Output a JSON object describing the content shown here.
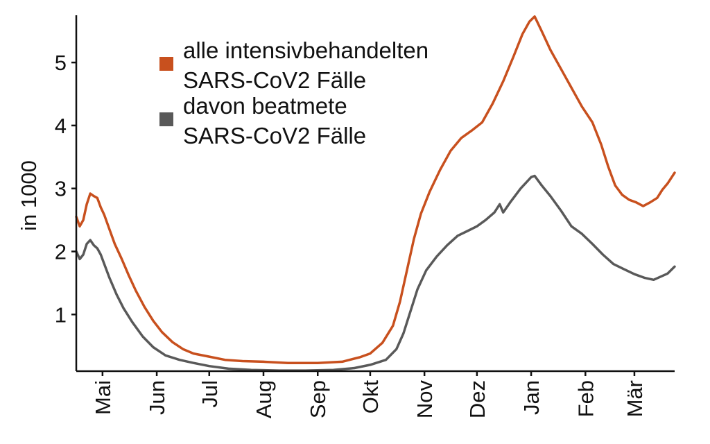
{
  "chart_data": {
    "type": "line",
    "title": "",
    "xlabel": "",
    "ylabel": "in 1000",
    "ylim": [
      0.1,
      5.75
    ],
    "y_ticks": [
      1,
      2,
      3,
      4,
      5
    ],
    "x_range": [
      "2020-04-16",
      "2021-03-24"
    ],
    "x_ticks": [
      {
        "date": "2020-05-01",
        "label": "Mai"
      },
      {
        "date": "2020-06-01",
        "label": "Jun"
      },
      {
        "date": "2020-07-01",
        "label": "Jul"
      },
      {
        "date": "2020-08-01",
        "label": "Aug"
      },
      {
        "date": "2020-09-01",
        "label": "Sep"
      },
      {
        "date": "2020-10-01",
        "label": "Okt"
      },
      {
        "date": "2020-11-01",
        "label": "Nov"
      },
      {
        "date": "2020-12-01",
        "label": "Dez"
      },
      {
        "date": "2021-01-01",
        "label": "Jan"
      },
      {
        "date": "2021-02-01",
        "label": "Feb"
      },
      {
        "date": "2021-03-01",
        "label": "Mär"
      }
    ],
    "grid": false,
    "legend_position": "top-left",
    "series": [
      {
        "name": "alle intensivbehandelten SARS-CoV2 Fälle",
        "color": "#C8501E",
        "points": [
          [
            "2020-04-16",
            2.55
          ],
          [
            "2020-04-18",
            2.4
          ],
          [
            "2020-04-20",
            2.5
          ],
          [
            "2020-04-22",
            2.75
          ],
          [
            "2020-04-24",
            2.92
          ],
          [
            "2020-04-26",
            2.88
          ],
          [
            "2020-04-28",
            2.85
          ],
          [
            "2020-04-30",
            2.7
          ],
          [
            "2020-05-02",
            2.58
          ],
          [
            "2020-05-05",
            2.35
          ],
          [
            "2020-05-08",
            2.12
          ],
          [
            "2020-05-12",
            1.88
          ],
          [
            "2020-05-16",
            1.62
          ],
          [
            "2020-05-20",
            1.38
          ],
          [
            "2020-05-25",
            1.12
          ],
          [
            "2020-05-30",
            0.9
          ],
          [
            "2020-06-04",
            0.72
          ],
          [
            "2020-06-10",
            0.56
          ],
          [
            "2020-06-16",
            0.45
          ],
          [
            "2020-06-22",
            0.38
          ],
          [
            "2020-07-01",
            0.33
          ],
          [
            "2020-07-10",
            0.28
          ],
          [
            "2020-07-20",
            0.26
          ],
          [
            "2020-08-01",
            0.25
          ],
          [
            "2020-08-15",
            0.23
          ],
          [
            "2020-09-01",
            0.23
          ],
          [
            "2020-09-15",
            0.25
          ],
          [
            "2020-09-25",
            0.32
          ],
          [
            "2020-10-01",
            0.38
          ],
          [
            "2020-10-08",
            0.55
          ],
          [
            "2020-10-14",
            0.82
          ],
          [
            "2020-10-18",
            1.2
          ],
          [
            "2020-10-22",
            1.7
          ],
          [
            "2020-10-26",
            2.2
          ],
          [
            "2020-10-30",
            2.6
          ],
          [
            "2020-11-04",
            2.95
          ],
          [
            "2020-11-10",
            3.3
          ],
          [
            "2020-11-16",
            3.6
          ],
          [
            "2020-11-22",
            3.8
          ],
          [
            "2020-11-28",
            3.92
          ],
          [
            "2020-12-04",
            4.05
          ],
          [
            "2020-12-10",
            4.35
          ],
          [
            "2020-12-16",
            4.7
          ],
          [
            "2020-12-22",
            5.1
          ],
          [
            "2020-12-27",
            5.45
          ],
          [
            "2020-12-31",
            5.65
          ],
          [
            "2021-01-03",
            5.73
          ],
          [
            "2021-01-07",
            5.5
          ],
          [
            "2021-01-12",
            5.2
          ],
          [
            "2021-01-18",
            4.9
          ],
          [
            "2021-01-24",
            4.6
          ],
          [
            "2021-01-30",
            4.3
          ],
          [
            "2021-02-05",
            4.05
          ],
          [
            "2021-02-10",
            3.7
          ],
          [
            "2021-02-14",
            3.35
          ],
          [
            "2021-02-18",
            3.05
          ],
          [
            "2021-02-22",
            2.9
          ],
          [
            "2021-02-26",
            2.82
          ],
          [
            "2021-03-02",
            2.78
          ],
          [
            "2021-03-06",
            2.72
          ],
          [
            "2021-03-10",
            2.78
          ],
          [
            "2021-03-14",
            2.85
          ],
          [
            "2021-03-17",
            2.98
          ],
          [
            "2021-03-20",
            3.08
          ],
          [
            "2021-03-24",
            3.25
          ]
        ]
      },
      {
        "name": "davon beatmete SARS-CoV2 Fälle",
        "color": "#595959",
        "points": [
          [
            "2020-04-16",
            2.0
          ],
          [
            "2020-04-18",
            1.88
          ],
          [
            "2020-04-20",
            1.95
          ],
          [
            "2020-04-22",
            2.12
          ],
          [
            "2020-04-24",
            2.18
          ],
          [
            "2020-04-26",
            2.1
          ],
          [
            "2020-04-28",
            2.05
          ],
          [
            "2020-04-30",
            1.95
          ],
          [
            "2020-05-02",
            1.8
          ],
          [
            "2020-05-05",
            1.58
          ],
          [
            "2020-05-09",
            1.32
          ],
          [
            "2020-05-13",
            1.1
          ],
          [
            "2020-05-18",
            0.88
          ],
          [
            "2020-05-24",
            0.65
          ],
          [
            "2020-05-30",
            0.48
          ],
          [
            "2020-06-06",
            0.35
          ],
          [
            "2020-06-14",
            0.28
          ],
          [
            "2020-06-22",
            0.23
          ],
          [
            "2020-07-01",
            0.18
          ],
          [
            "2020-07-12",
            0.14
          ],
          [
            "2020-07-25",
            0.12
          ],
          [
            "2020-08-10",
            0.11
          ],
          [
            "2020-08-25",
            0.11
          ],
          [
            "2020-09-10",
            0.12
          ],
          [
            "2020-09-22",
            0.15
          ],
          [
            "2020-10-01",
            0.2
          ],
          [
            "2020-10-10",
            0.28
          ],
          [
            "2020-10-16",
            0.45
          ],
          [
            "2020-10-20",
            0.7
          ],
          [
            "2020-10-24",
            1.05
          ],
          [
            "2020-10-28",
            1.4
          ],
          [
            "2020-11-02",
            1.7
          ],
          [
            "2020-11-08",
            1.92
          ],
          [
            "2020-11-14",
            2.1
          ],
          [
            "2020-11-20",
            2.25
          ],
          [
            "2020-11-26",
            2.33
          ],
          [
            "2020-12-01",
            2.4
          ],
          [
            "2020-12-06",
            2.5
          ],
          [
            "2020-12-11",
            2.62
          ],
          [
            "2020-12-14",
            2.75
          ],
          [
            "2020-12-16",
            2.62
          ],
          [
            "2020-12-20",
            2.78
          ],
          [
            "2020-12-26",
            3.0
          ],
          [
            "2021-01-01",
            3.18
          ],
          [
            "2021-01-03",
            3.2
          ],
          [
            "2021-01-07",
            3.05
          ],
          [
            "2021-01-12",
            2.88
          ],
          [
            "2021-01-18",
            2.65
          ],
          [
            "2021-01-24",
            2.4
          ],
          [
            "2021-01-30",
            2.28
          ],
          [
            "2021-02-05",
            2.12
          ],
          [
            "2021-02-11",
            1.95
          ],
          [
            "2021-02-17",
            1.8
          ],
          [
            "2021-02-23",
            1.72
          ],
          [
            "2021-03-01",
            1.64
          ],
          [
            "2021-03-07",
            1.58
          ],
          [
            "2021-03-12",
            1.55
          ],
          [
            "2021-03-16",
            1.6
          ],
          [
            "2021-03-20",
            1.65
          ],
          [
            "2021-03-24",
            1.76
          ]
        ]
      }
    ],
    "legend": [
      {
        "lines": [
          "alle intensivbehandelten",
          "SARS-CoV2 Fälle"
        ],
        "color": "#C8501E"
      },
      {
        "lines": [
          "davon beatmete",
          "SARS-CoV2 Fälle"
        ],
        "color": "#595959"
      }
    ]
  }
}
